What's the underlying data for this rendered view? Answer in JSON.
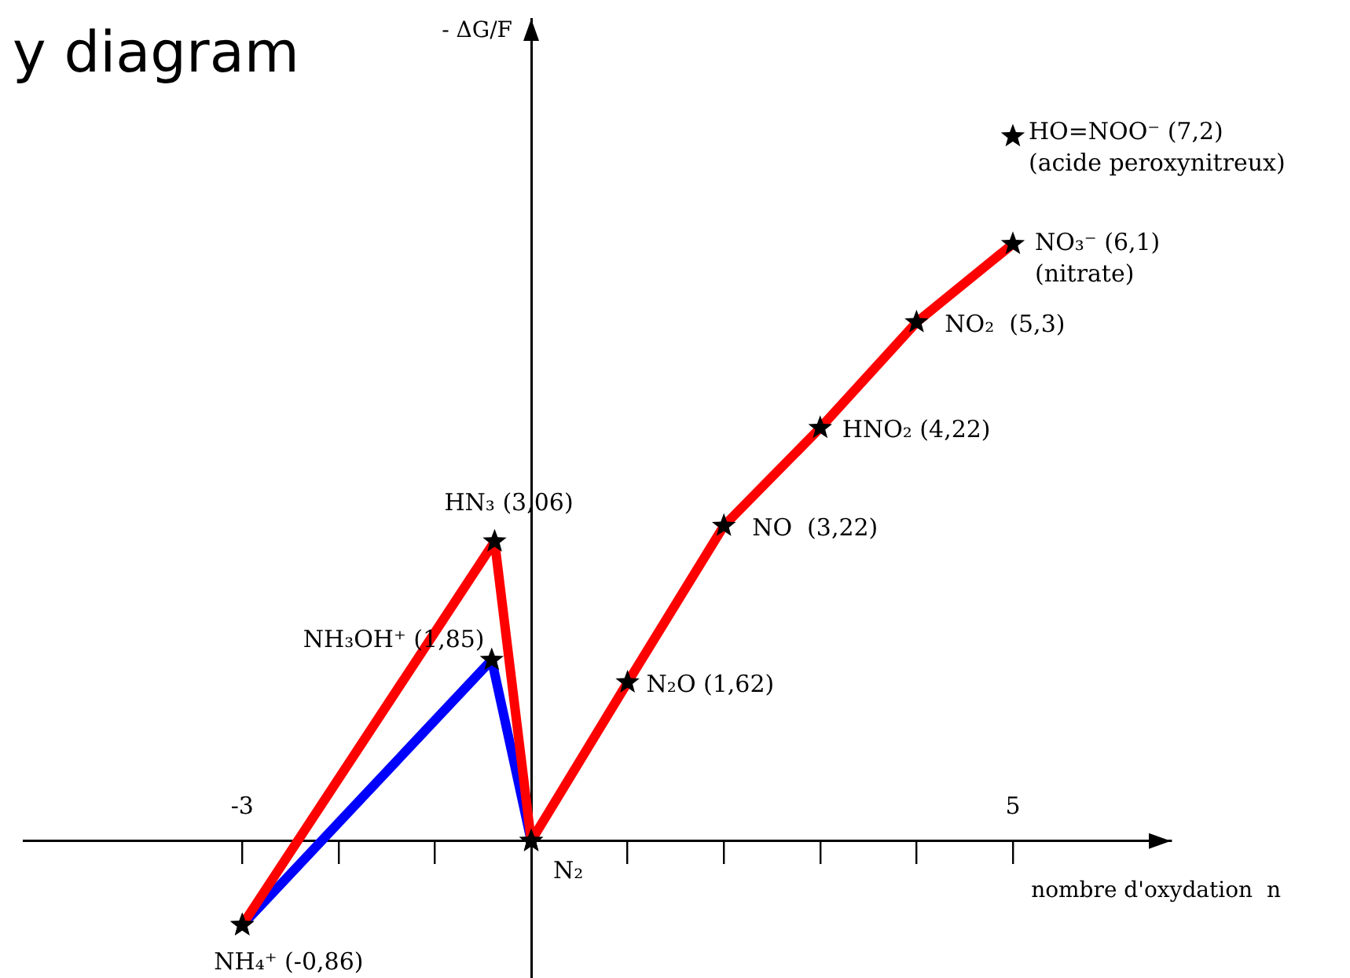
{
  "chart_data": {
    "type": "line",
    "title": "y diagram",
    "xlabel": "nombre d'oxydation  n",
    "ylabel": "- ΔG/F",
    "series": [
      {
        "color": "#ff0000",
        "x": [
          -3,
          -0.38,
          0,
          1,
          2,
          3,
          4,
          5
        ],
        "values": [
          -0.86,
          3.06,
          0,
          1.62,
          3.22,
          4.22,
          5.3,
          6.1
        ],
        "value_labels": [
          "NH₄⁺ (-0,86)",
          "HN₃ (3,06)",
          null,
          "N₂O (1,62)",
          "NO  (3,22)",
          "HNO₂ (4,22)",
          "NO₂  (5,3)",
          "NO₃⁻ (6,1)\n(nitrate)"
        ]
      },
      {
        "color": "#0000ff",
        "x": [
          -3,
          -0.41,
          0
        ],
        "values": [
          -0.86,
          1.85,
          0
        ],
        "value_labels": [
          null,
          "NH₃OH⁺ (1,85)",
          null
        ]
      },
      {
        "type": "scatter",
        "color": "#000000",
        "x": [
          5
        ],
        "values": [
          7.2
        ],
        "value_labels": [
          "HO=NOO⁻ (7,2)\n(acide peroxynitreux)"
        ]
      }
    ],
    "xlim": [
      -5.27,
      6.64
    ],
    "xticks": [
      -3,
      {
        "value": -2,
        "label": null
      },
      {
        "value": -1,
        "label": null
      },
      {
        "value": 1,
        "label": null
      },
      {
        "value": 2,
        "label": null
      },
      {
        "value": 3,
        "label": null
      },
      {
        "value": 4,
        "label": null
      },
      5
    ],
    "ylim": [
      -1.4,
      8.4
    ],
    "tick_labels": "x",
    "grid": false,
    "legend": false,
    "marker": "star",
    "line_style": "solid",
    "annotations": [
      {
        "text": "N₂",
        "x": 0,
        "y": 0
      }
    ]
  }
}
